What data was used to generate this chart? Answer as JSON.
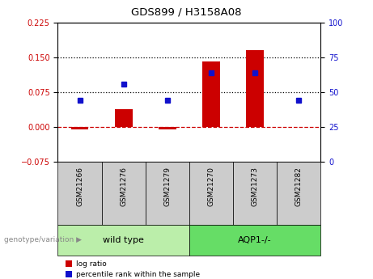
{
  "title": "GDS899 / H3158A08",
  "samples": [
    "GSM21266",
    "GSM21276",
    "GSM21279",
    "GSM21270",
    "GSM21273",
    "GSM21282"
  ],
  "log_ratio": [
    -0.005,
    0.038,
    -0.005,
    0.14,
    0.165,
    0.0
  ],
  "percentile_rank_pct": [
    44,
    56,
    44,
    64,
    64,
    44
  ],
  "bar_color": "#cc0000",
  "dot_color": "#1111cc",
  "left_ylim": [
    -0.075,
    0.225
  ],
  "right_ylim": [
    0,
    100
  ],
  "left_yticks": [
    -0.075,
    0,
    0.075,
    0.15,
    0.225
  ],
  "right_yticks": [
    0,
    25,
    50,
    75,
    100
  ],
  "hline_values": [
    0.075,
    0.15
  ],
  "zero_line_color": "#cc0000",
  "groups": [
    {
      "label": "wild type",
      "color": "#bbeeaa",
      "start": 0,
      "end": 2
    },
    {
      "label": "AQP1-/-",
      "color": "#66dd66",
      "start": 3,
      "end": 5
    }
  ],
  "legend_items": [
    {
      "label": "log ratio",
      "color": "#cc0000"
    },
    {
      "label": "percentile rank within the sample",
      "color": "#1111cc"
    }
  ],
  "genotype_label": "genotype/variation",
  "bg_color": "#ffffff",
  "tick_color_left": "#cc0000",
  "tick_color_right": "#1111cc",
  "sample_box_color": "#cccccc",
  "bar_width": 0.4
}
